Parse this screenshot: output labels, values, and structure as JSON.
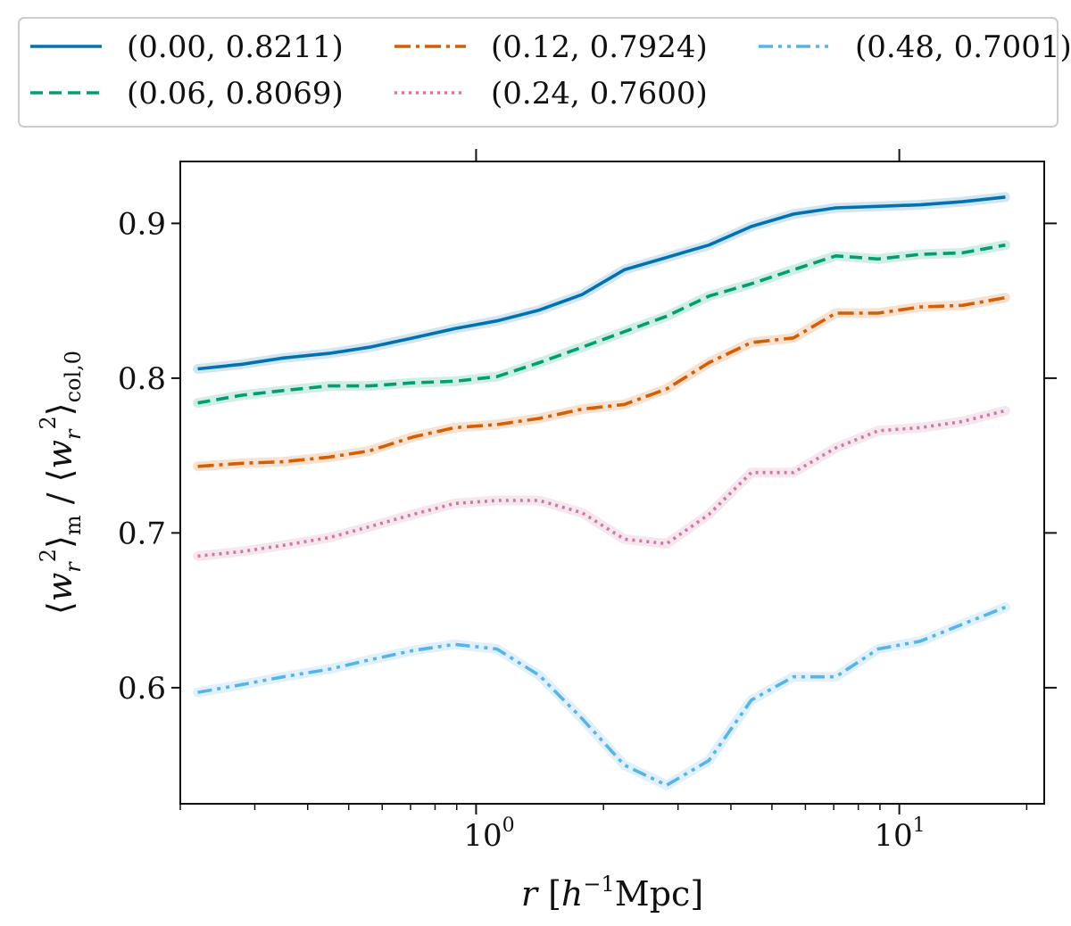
{
  "chart_data": {
    "type": "line",
    "title": "",
    "xlabel": "r  [h^-1 Mpc]",
    "ylabel": "⟨w_r^2⟩_m / ⟨w_r^2⟩_col,0",
    "xscale": "log",
    "xlim": [
      0.2,
      22
    ],
    "ylim": [
      0.525,
      0.94
    ],
    "yticks": [
      0.6,
      0.7,
      0.8,
      0.9
    ],
    "ytick_labels": [
      "0.6",
      "0.7",
      "0.8",
      "0.9"
    ],
    "xticks": [
      1,
      10
    ],
    "xtick_labels": [
      "10^0",
      "10^1"
    ],
    "legend_position": "top (outside, 3 columns)",
    "x": [
      0.22,
      0.28,
      0.35,
      0.45,
      0.56,
      0.71,
      0.89,
      1.12,
      1.41,
      1.78,
      2.24,
      2.82,
      3.55,
      4.47,
      5.62,
      7.08,
      8.91,
      11.2,
      14.1,
      17.8
    ],
    "series": [
      {
        "name": "(0.00,  0.8211)",
        "color": "#0072b2",
        "dash": "solid",
        "values": [
          0.806,
          0.809,
          0.813,
          0.816,
          0.82,
          0.826,
          0.832,
          0.837,
          0.844,
          0.854,
          0.87,
          0.878,
          0.886,
          0.898,
          0.906,
          0.91,
          0.911,
          0.912,
          0.914,
          0.917
        ]
      },
      {
        "name": "(0.06,  0.8069)",
        "color": "#009e73",
        "dash": "dashed",
        "values": [
          0.784,
          0.789,
          0.792,
          0.795,
          0.795,
          0.797,
          0.798,
          0.801,
          0.81,
          0.82,
          0.83,
          0.84,
          0.853,
          0.861,
          0.87,
          0.879,
          0.877,
          0.88,
          0.881,
          0.886
        ]
      },
      {
        "name": "(0.12,  0.7924)",
        "color": "#d55e00",
        "dash": "dashdot",
        "values": [
          0.743,
          0.745,
          0.746,
          0.749,
          0.753,
          0.762,
          0.768,
          0.77,
          0.774,
          0.78,
          0.783,
          0.793,
          0.81,
          0.823,
          0.826,
          0.842,
          0.842,
          0.846,
          0.847,
          0.852
        ]
      },
      {
        "name": "(0.24,  0.7600)",
        "color": "#cc79a7",
        "dash": "dotted",
        "values": [
          0.685,
          0.688,
          0.692,
          0.697,
          0.704,
          0.712,
          0.719,
          0.721,
          0.721,
          0.713,
          0.696,
          0.693,
          0.712,
          0.739,
          0.739,
          0.755,
          0.766,
          0.768,
          0.772,
          0.779
        ]
      },
      {
        "name": "(0.48,  0.7001)",
        "color": "#56b4e9",
        "dash": "dashdotdot",
        "values": [
          0.597,
          0.602,
          0.607,
          0.612,
          0.618,
          0.624,
          0.628,
          0.625,
          0.608,
          0.58,
          0.55,
          0.537,
          0.553,
          0.592,
          0.607,
          0.607,
          0.625,
          0.63,
          0.641,
          0.652
        ]
      }
    ]
  }
}
